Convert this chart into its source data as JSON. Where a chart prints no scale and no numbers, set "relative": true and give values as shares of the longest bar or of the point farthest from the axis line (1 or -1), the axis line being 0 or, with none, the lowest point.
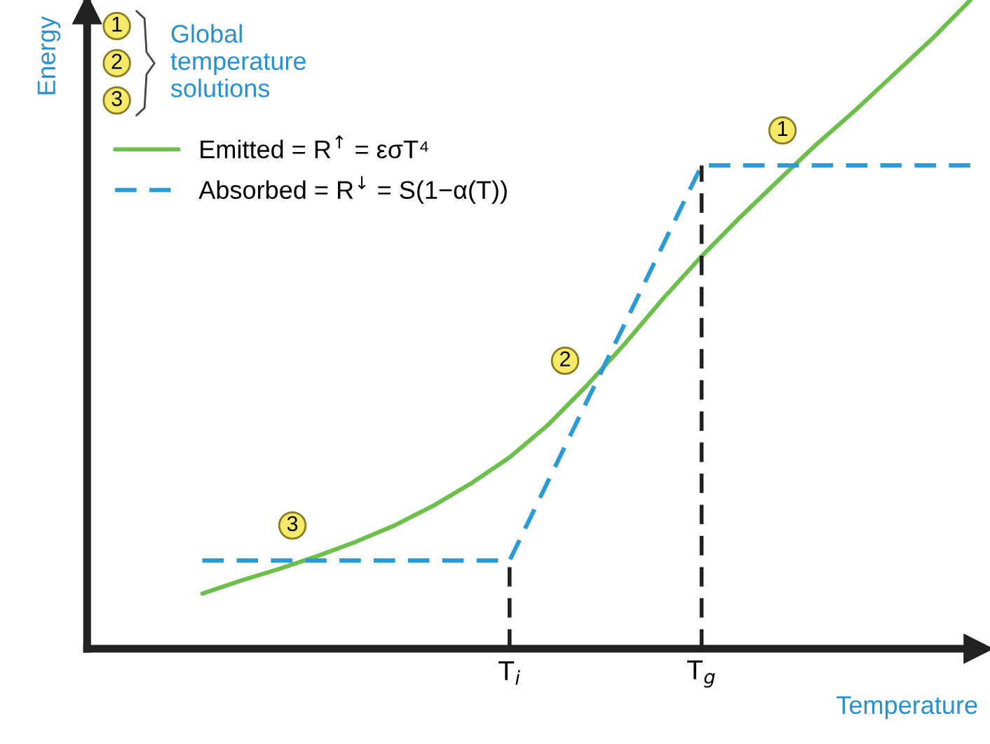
{
  "chart_data": {
    "type": "line",
    "relative": true,
    "xlabel": "Temperature",
    "ylabel": "Energy",
    "categories": [
      null,
      null,
      null,
      null,
      null,
      null,
      null,
      null,
      "T$_{i}$",
      null,
      null,
      null,
      null,
      "T$_{g}$",
      null,
      null,
      null,
      null,
      null,
      null,
      null
    ],
    "tick_labels": "x",
    "grid": false,
    "legend": "top left",
    "series": [
      {
        "name": "Emitted = R$^{↑}$ = εσT⁴",
        "color": "#6dbf4b",
        "line_style": "solid",
        "values": [
          0.085,
          0.105,
          0.123,
          0.143,
          0.165,
          0.19,
          0.22,
          0.255,
          0.295,
          0.345,
          0.405,
          0.47,
          0.54,
          0.605,
          0.665,
          0.722,
          0.778,
          0.83,
          0.885,
          0.94,
          1.0
        ]
      },
      {
        "name": "Absorbed = R$^{↓}$ = S(1−α(T))",
        "color": "#2b9bd6",
        "line_style": "dashed",
        "values": [
          0.136,
          0.136,
          0.136,
          0.136,
          0.136,
          0.136,
          0.136,
          0.136,
          0.136,
          0.258,
          0.38,
          0.501,
          0.623,
          0.745,
          0.745,
          0.745,
          0.745,
          0.745,
          0.745,
          0.745,
          0.745
        ]
      }
    ],
    "ref_lines": [
      {
        "axis": "x",
        "value": "T$_{i}$",
        "color": "#222222",
        "line_style": "dashed"
      },
      {
        "axis": "x",
        "value": "T$_{g}$",
        "color": "#222222",
        "line_style": "dashed"
      }
    ],
    "annotations": [
      {
        "text": "1",
        "y": 0.745
      },
      {
        "text": "2",
        "y": 0.39
      },
      {
        "text": "3",
        "y": 0.136
      },
      "1",
      "2",
      "3",
      "Global temperature solutions"
    ]
  }
}
